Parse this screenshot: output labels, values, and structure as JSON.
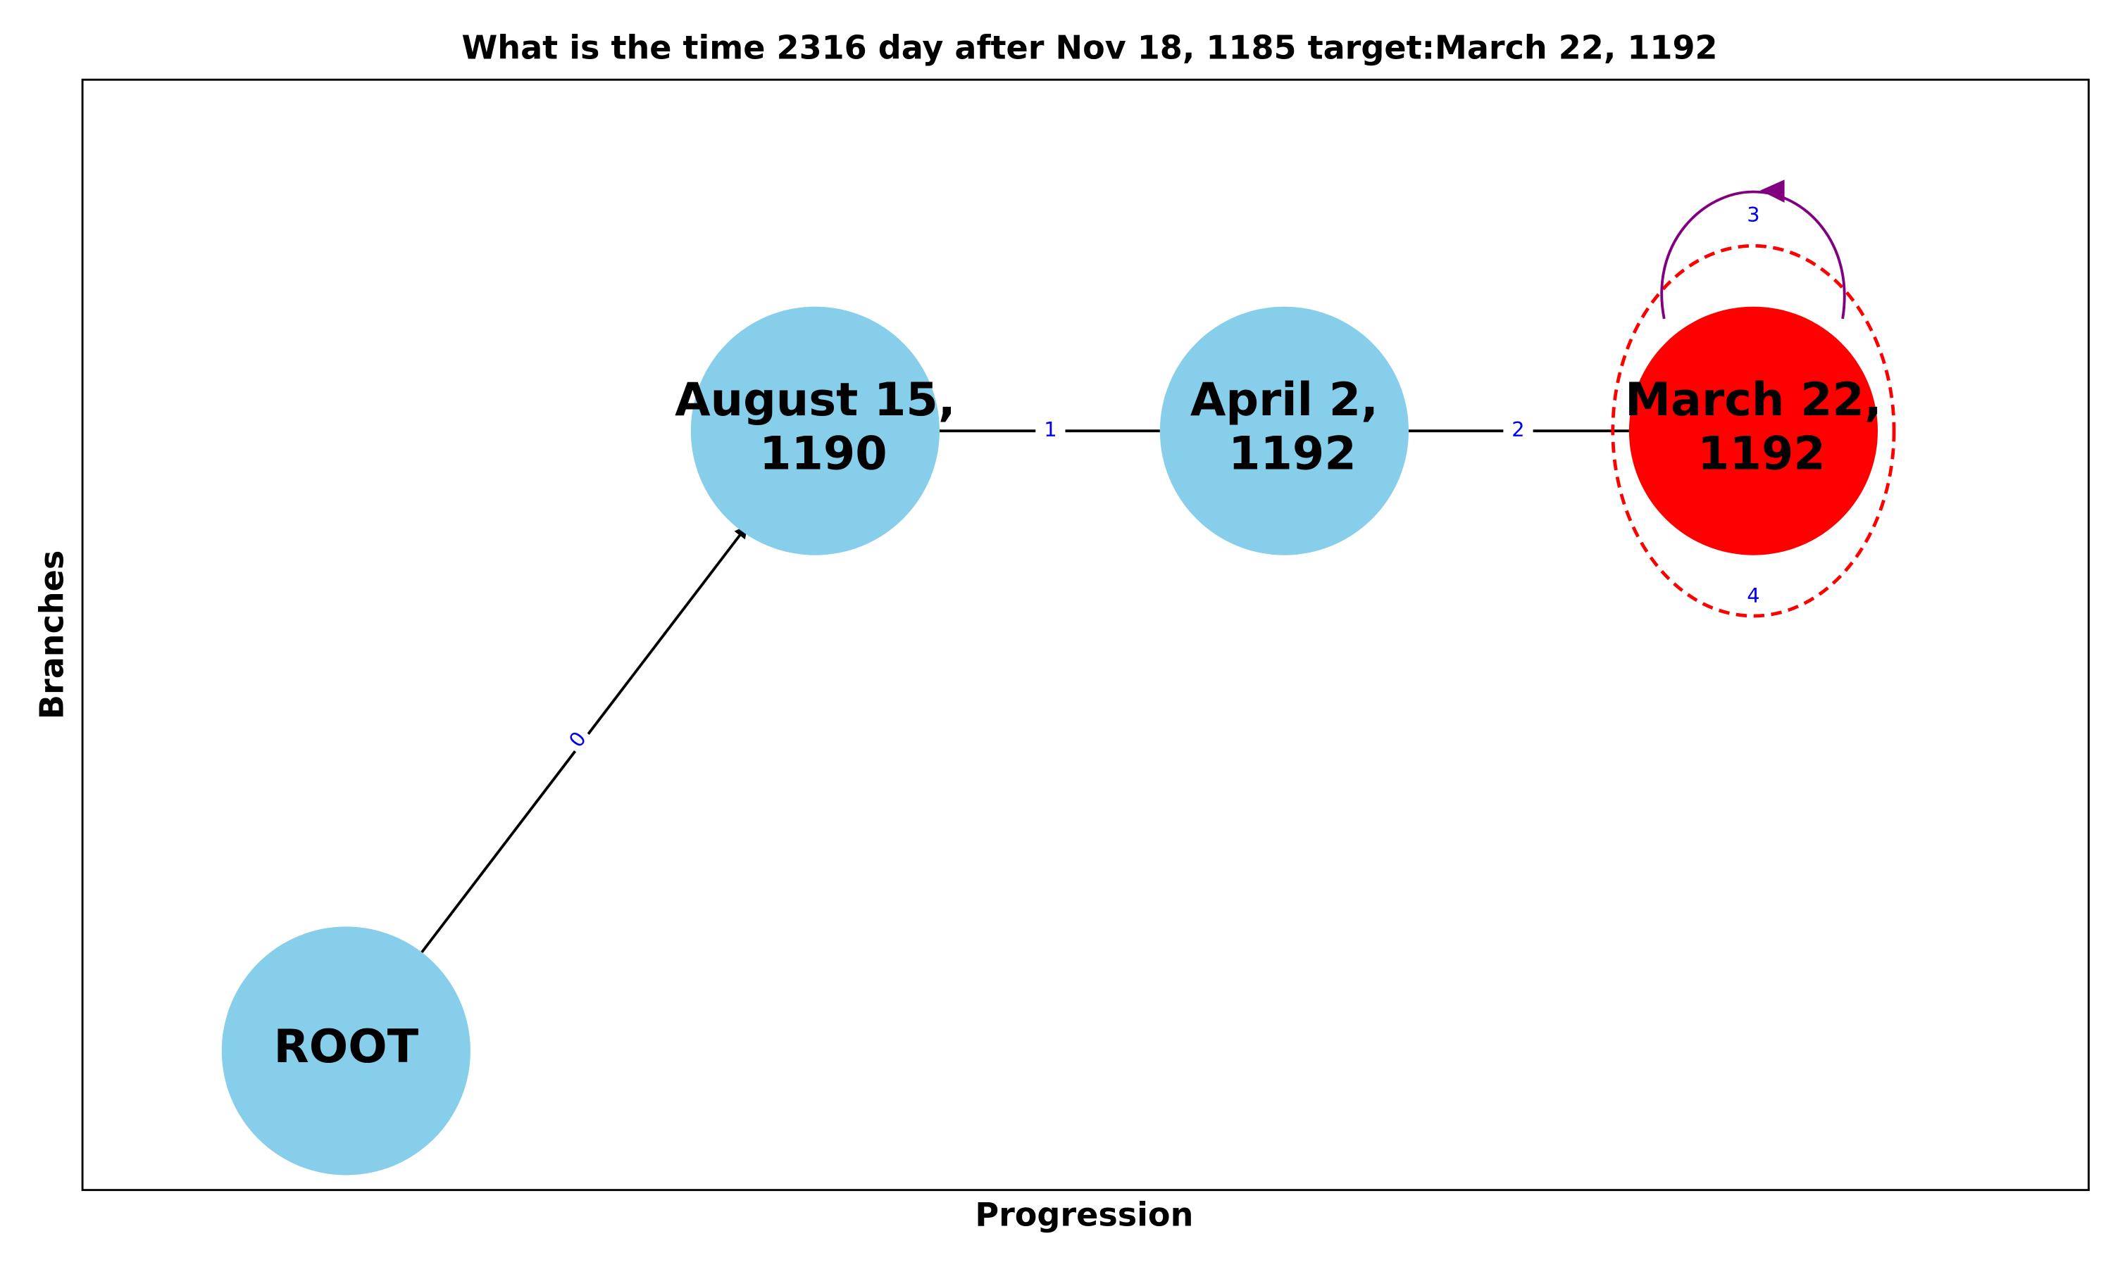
{
  "title": "What is the time 2316 day after Nov 18, 1185 target:March 22, 1192",
  "x_label": "Progression",
  "y_label": "Branches",
  "nodes": [
    {
      "lines": [
        "ROOT"
      ]
    },
    {
      "lines": [
        "August 15,",
        "1190"
      ]
    },
    {
      "lines": [
        "April 2,",
        "1192"
      ]
    },
    {
      "lines": [
        "March 22,",
        "1192"
      ]
    }
  ],
  "edges": [
    {
      "label": "0"
    },
    {
      "label": "1"
    },
    {
      "label": "2"
    },
    {
      "label": "3"
    },
    {
      "label": "4"
    }
  ]
}
